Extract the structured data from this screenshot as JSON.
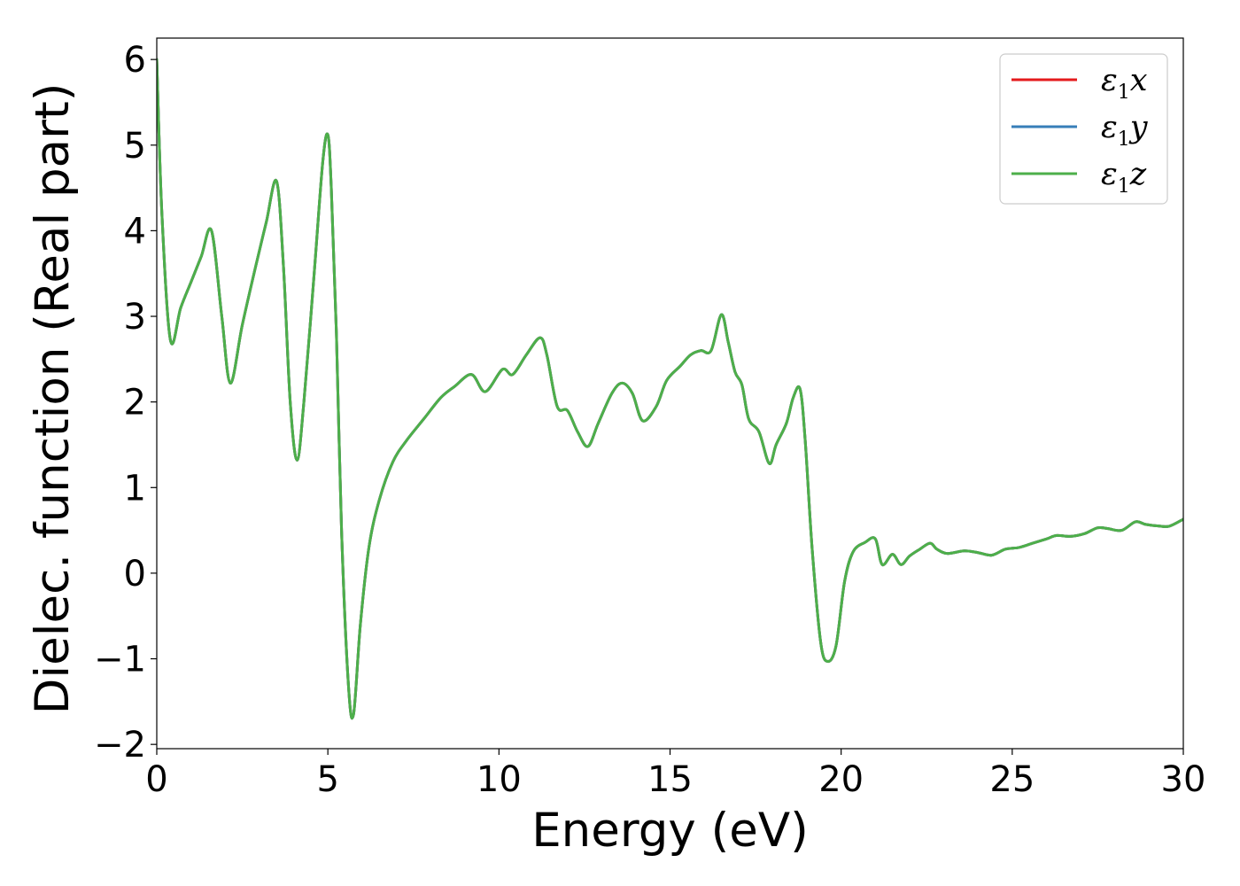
{
  "chart_data": {
    "type": "line",
    "xlabel": "Energy (eV)",
    "ylabel": "Dielec. function (Real part)",
    "xlim": [
      0,
      30
    ],
    "ylim": [
      -2.05,
      6.25
    ],
    "x_ticks": [
      0,
      5,
      10,
      15,
      20,
      25,
      30
    ],
    "y_ticks": [
      -2,
      -1,
      0,
      1,
      2,
      3,
      4,
      5,
      6
    ],
    "x_tick_labels": [
      "0",
      "5",
      "10",
      "15",
      "20",
      "25",
      "30"
    ],
    "y_tick_labels": [
      "−2",
      "−1",
      "0",
      "1",
      "2",
      "3",
      "4",
      "5",
      "6"
    ],
    "grid": false,
    "legend_position": "top-right",
    "series": [
      {
        "name": "ε1x",
        "label_base": "ε",
        "label_sub": "1",
        "label_var": "x",
        "color": "#e41a1c"
      },
      {
        "name": "ε1y",
        "label_base": "ε",
        "label_sub": "1",
        "label_var": "y",
        "color": "#377eb8"
      },
      {
        "name": "ε1z",
        "label_base": "ε",
        "label_sub": "1",
        "label_var": "z",
        "color": "#4daf4a"
      }
    ],
    "x": [
      0,
      0.15,
      0.4,
      0.7,
      1.0,
      1.3,
      1.6,
      1.9,
      2.15,
      2.5,
      2.9,
      3.2,
      3.5,
      3.7,
      3.9,
      4.1,
      4.3,
      4.6,
      4.85,
      5.0,
      5.1,
      5.25,
      5.4,
      5.6,
      5.75,
      5.95,
      6.2,
      6.5,
      6.9,
      7.3,
      7.8,
      8.3,
      8.7,
      9.2,
      9.6,
      10.1,
      10.4,
      10.8,
      11.2,
      11.4,
      11.7,
      12.0,
      12.3,
      12.6,
      12.9,
      13.3,
      13.6,
      13.9,
      14.2,
      14.6,
      14.9,
      15.3,
      15.6,
      15.9,
      16.2,
      16.5,
      16.7,
      16.9,
      17.1,
      17.3,
      17.6,
      17.9,
      18.1,
      18.4,
      18.6,
      18.8,
      18.95,
      19.15,
      19.4,
      19.6,
      19.85,
      20.1,
      20.35,
      20.7,
      21.0,
      21.2,
      21.5,
      21.75,
      22.0,
      22.3,
      22.6,
      22.8,
      23.1,
      23.6,
      24.0,
      24.4,
      24.8,
      25.2,
      25.6,
      26.0,
      26.3,
      26.7,
      27.1,
      27.5,
      27.8,
      28.2,
      28.6,
      28.9,
      29.3,
      29.6,
      30.0
    ],
    "y": [
      6.0,
      4.2,
      2.72,
      3.1,
      3.4,
      3.7,
      4.0,
      3.0,
      2.22,
      2.9,
      3.6,
      4.1,
      4.58,
      3.6,
      2.0,
      1.32,
      2.0,
      3.5,
      4.8,
      5.12,
      4.5,
      2.8,
      0.5,
      -1.3,
      -1.65,
      -0.6,
      0.3,
      0.85,
      1.3,
      1.55,
      1.8,
      2.05,
      2.18,
      2.32,
      2.12,
      2.38,
      2.32,
      2.55,
      2.75,
      2.55,
      1.95,
      1.9,
      1.65,
      1.48,
      1.75,
      2.1,
      2.22,
      2.1,
      1.78,
      1.95,
      2.25,
      2.42,
      2.55,
      2.6,
      2.6,
      3.02,
      2.7,
      2.35,
      2.2,
      1.8,
      1.65,
      1.28,
      1.5,
      1.75,
      2.05,
      2.15,
      1.55,
      0.3,
      -0.8,
      -1.03,
      -0.85,
      -0.1,
      0.25,
      0.36,
      0.4,
      0.1,
      0.22,
      0.1,
      0.2,
      0.28,
      0.35,
      0.28,
      0.23,
      0.26,
      0.24,
      0.21,
      0.28,
      0.3,
      0.35,
      0.4,
      0.44,
      0.43,
      0.46,
      0.53,
      0.52,
      0.5,
      0.6,
      0.57,
      0.55,
      0.55,
      0.63
    ]
  }
}
